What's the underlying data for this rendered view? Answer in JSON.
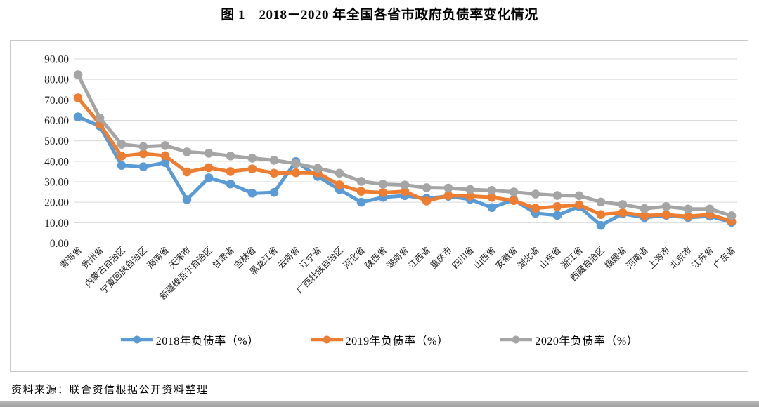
{
  "source_note": "资料来源：联合资信根据公开资料整理",
  "chart_data": {
    "type": "line",
    "title": "图 1　2018－2020 年全国各省市政府负债率变化情况",
    "categories": [
      "青海省",
      "贵州省",
      "内蒙古自治区",
      "宁夏回族自治区",
      "海南省",
      "天津市",
      "新疆维吾尔自治区",
      "甘肃省",
      "吉林省",
      "黑龙江省",
      "云南省",
      "辽宁省",
      "广西壮族自治区",
      "河北省",
      "陕西省",
      "湖南省",
      "江西省",
      "重庆市",
      "四川省",
      "山西省",
      "安徽省",
      "湖北省",
      "山东省",
      "浙江省",
      "西藏自治区",
      "福建省",
      "河南省",
      "上海市",
      "北京市",
      "江苏省",
      "广东省"
    ],
    "series": [
      {
        "name": "2018年负债率（%）",
        "color": "#5B9BD5",
        "values": [
          61.7,
          57.2,
          38.0,
          37.3,
          39.3,
          21.3,
          31.9,
          28.9,
          24.4,
          24.8,
          39.9,
          32.6,
          26.2,
          20.0,
          22.4,
          23.2,
          21.9,
          22.9,
          21.4,
          17.4,
          21.2,
          14.6,
          13.6,
          17.9,
          8.7,
          14.4,
          12.5,
          13.6,
          12.5,
          13.2,
          10.2
        ]
      },
      {
        "name": "2019年负债率（%）",
        "color": "#ED7D31",
        "values": [
          71.0,
          58.2,
          42.5,
          43.7,
          42.7,
          34.8,
          36.9,
          35.0,
          36.3,
          34.2,
          34.4,
          34.3,
          28.5,
          25.3,
          24.7,
          25.3,
          20.6,
          23.3,
          23.0,
          22.4,
          20.8,
          17.1,
          17.9,
          18.7,
          14.0,
          14.9,
          13.5,
          13.9,
          13.1,
          14.0,
          10.7
        ]
      },
      {
        "name": "2020年负债率（%）",
        "color": "#A5A5A5",
        "values": [
          82.3,
          61.2,
          48.3,
          47.2,
          47.7,
          44.6,
          43.9,
          42.6,
          41.5,
          40.5,
          38.9,
          36.6,
          34.2,
          30.2,
          28.8,
          28.4,
          27.1,
          26.9,
          26.2,
          25.8,
          25.0,
          24.0,
          23.3,
          23.2,
          20.1,
          18.9,
          16.9,
          17.9,
          16.7,
          16.7,
          13.4
        ]
      }
    ],
    "y_axis": {
      "min": 0,
      "max": 90,
      "step": 10,
      "ticks": [
        0,
        10,
        20,
        30,
        40,
        50,
        60,
        70,
        80,
        90
      ],
      "tick_format": "0.00"
    },
    "x_label_rotation_deg": 45,
    "grid": true,
    "legend_position": "bottom",
    "grid_color": "#D9D9D9",
    "frame_color": "#C9C9C9"
  }
}
